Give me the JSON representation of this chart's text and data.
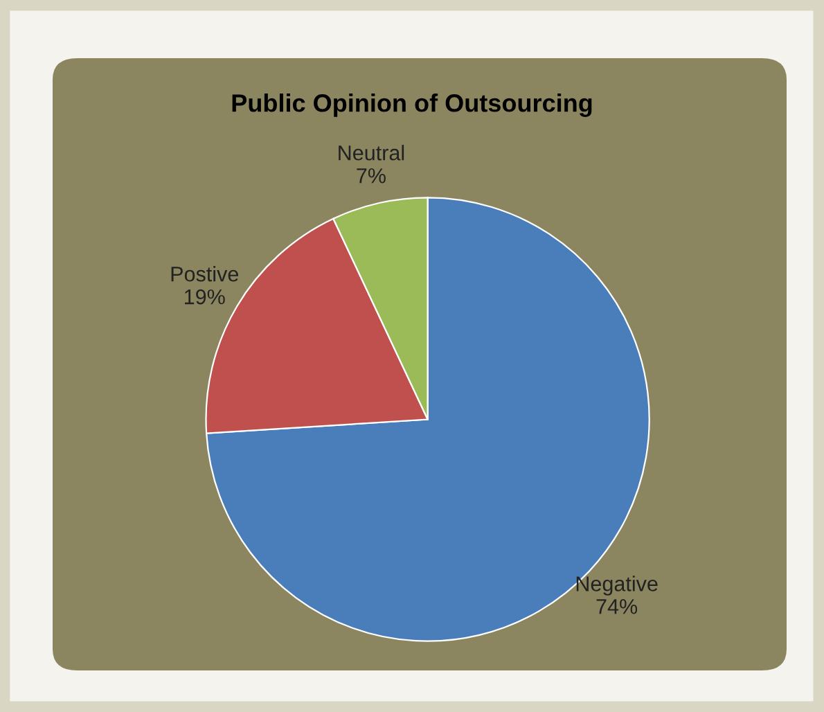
{
  "chart_data": {
    "type": "pie",
    "title": "Public Opinion of Outsourcing",
    "categories": [
      "Negative",
      "Postive",
      "Neutral"
    ],
    "values": [
      74,
      19,
      7
    ],
    "value_labels": [
      "74%",
      "19%",
      "7%"
    ],
    "colors": [
      "#4a7ebb",
      "#c0504d",
      "#9bbb59"
    ]
  }
}
